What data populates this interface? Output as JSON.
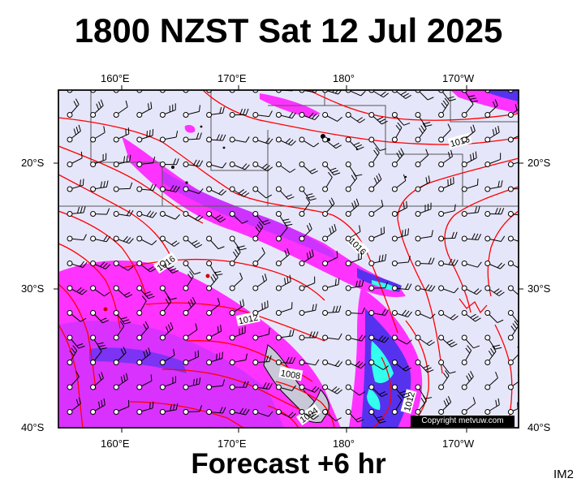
{
  "title": "1800 NZST Sat 12 Jul 2025",
  "footer": "Forecast +6 hr",
  "code": "IM2",
  "copyright": "Copyright metvuw.com",
  "longitude_labels": [
    "160°E",
    "170°E",
    "180°",
    "170°W"
  ],
  "latitude_labels": [
    "20°S",
    "30°S",
    "40°S"
  ],
  "isobar_labels": [
    "1016",
    "1016",
    "1016",
    "1012",
    "1008",
    "1004",
    "1012"
  ],
  "colors": {
    "ocean": "#e6e6fa",
    "isobar": "#ff0000",
    "rain_light": "#ff33ff",
    "rain_mid": "#cc33ff",
    "rain_heavy": "#5533ee",
    "rain_extreme": "#33ffee"
  }
}
